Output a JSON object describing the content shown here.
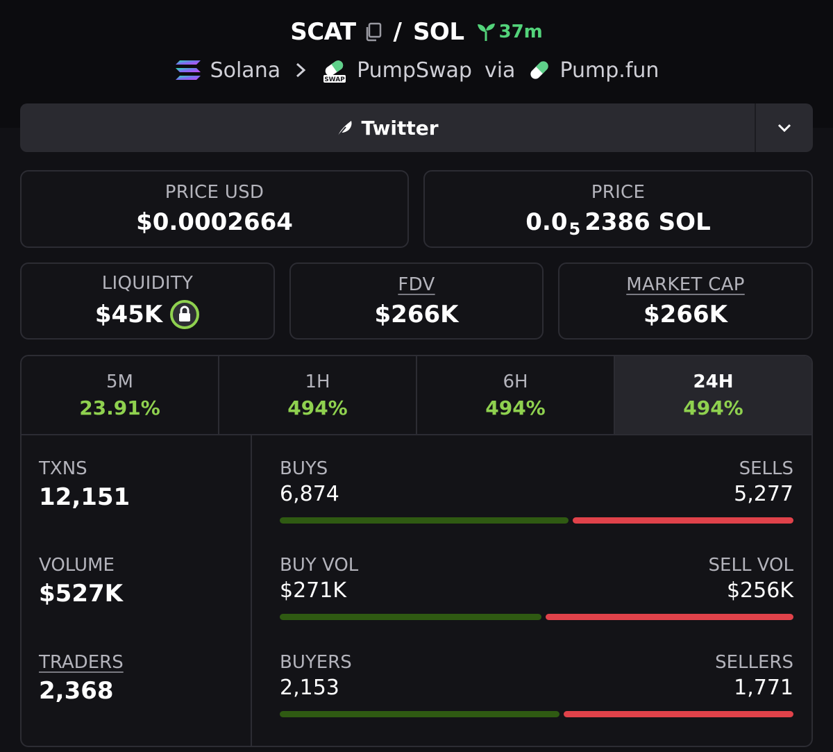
{
  "header": {
    "base_token": "SCAT",
    "separator": "/",
    "quote_token": "SOL",
    "age": "37m"
  },
  "breadcrumb": {
    "chain": "Solana",
    "dex": "PumpSwap",
    "via": "via",
    "launchpad": "Pump.fun"
  },
  "social": {
    "label": "Twitter"
  },
  "prices": {
    "usd_label": "PRICE USD",
    "usd_value": "$0.0002664",
    "native_label": "PRICE",
    "native_prefix": "0.0",
    "native_zeros": "5",
    "native_digits": "2386",
    "native_unit": "SOL"
  },
  "stats": {
    "liquidity_label": "LIQUIDITY",
    "liquidity_value": "$45K",
    "fdv_label": "FDV",
    "fdv_value": "$266K",
    "mcap_label": "MARKET CAP",
    "mcap_value": "$266K"
  },
  "timeframes": [
    {
      "label": "5M",
      "change": "23.91%"
    },
    {
      "label": "1H",
      "change": "494%"
    },
    {
      "label": "6H",
      "change": "494%"
    },
    {
      "label": "24H",
      "change": "494%",
      "active": true
    }
  ],
  "metrics": {
    "txns_label": "TXNS",
    "txns_value": "12,151",
    "volume_label": "VOLUME",
    "volume_value": "$527K",
    "traders_label": "TRADERS",
    "traders_value": "2,368",
    "buys_label": "BUYS",
    "buys_value": "6,874",
    "sells_label": "SELLS",
    "sells_value": "5,277",
    "buy_vol_label": "BUY VOL",
    "buy_vol_value": "$271K",
    "sell_vol_label": "SELL VOL",
    "sell_vol_value": "$256K",
    "buyers_label": "BUYERS",
    "buyers_value": "2,153",
    "sellers_label": "SELLERS",
    "sellers_value": "1,771"
  },
  "ratios": {
    "txns_buy_share": 0.566,
    "volume_buy_share": 0.514,
    "traders_buy_share": 0.549
  },
  "colors": {
    "accent_green": "#8fd14f",
    "age_green": "#53d37a",
    "buy_bar": "#2f5a12",
    "sell_bar": "#e0424a"
  },
  "icons": {
    "copy": "copy-icon",
    "age": "sprout-icon",
    "chain": "solana-icon",
    "dex": "swap-icon",
    "launchpad": "pill-icon",
    "social": "feather-icon",
    "lock": "lock-icon"
  }
}
